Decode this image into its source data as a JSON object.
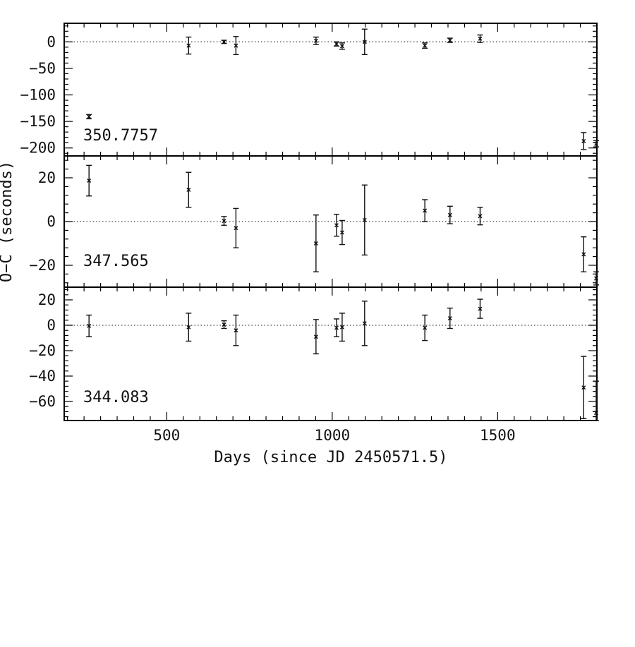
{
  "chart_data": {
    "type": "scatter",
    "xlabel": "Days (since JD 2450571.5)",
    "ylabel": "O−C (seconds)",
    "xlim": [
      190,
      1800
    ],
    "xticks": [
      {
        "value": 500,
        "label": "500"
      },
      {
        "value": 1000,
        "label": "1000"
      },
      {
        "value": 1500,
        "label": "1500"
      }
    ],
    "panels": [
      {
        "label": "350.7757",
        "ylim": [
          -215,
          35
        ],
        "yticks": [
          {
            "value": 0,
            "label": "0"
          },
          {
            "value": -50,
            "label": "−50"
          },
          {
            "value": -100,
            "label": "−100"
          },
          {
            "value": -150,
            "label": "−150"
          },
          {
            "value": -200,
            "label": "−200"
          }
        ],
        "points": [
          {
            "x": 265,
            "y": -141,
            "err": 4
          },
          {
            "x": 566,
            "y": -7,
            "err": 16
          },
          {
            "x": 673,
            "y": 0,
            "err": 3
          },
          {
            "x": 709,
            "y": -7,
            "err": 17
          },
          {
            "x": 951,
            "y": 2,
            "err": 7
          },
          {
            "x": 1013,
            "y": -4,
            "err": 4
          },
          {
            "x": 1030,
            "y": -8,
            "err": 6
          },
          {
            "x": 1098,
            "y": 0,
            "err": 24
          },
          {
            "x": 1280,
            "y": -7,
            "err": 5
          },
          {
            "x": 1356,
            "y": 3,
            "err": 4
          },
          {
            "x": 1447,
            "y": 6,
            "err": 7
          },
          {
            "x": 1760,
            "y": -187,
            "err": 16
          },
          {
            "x": 1800,
            "y": -192,
            "err": 6
          }
        ]
      },
      {
        "label": "347.565",
        "ylim": [
          -30,
          30
        ],
        "yticks": [
          {
            "value": 20,
            "label": "20"
          },
          {
            "value": 0,
            "label": "0"
          },
          {
            "value": -20,
            "label": "−20"
          }
        ],
        "points": [
          {
            "x": 265,
            "y": 18.7,
            "err": 7
          },
          {
            "x": 566,
            "y": 14.5,
            "err": 8
          },
          {
            "x": 673,
            "y": 0.3,
            "err": 2
          },
          {
            "x": 709,
            "y": -3,
            "err": 9
          },
          {
            "x": 951,
            "y": -10,
            "err": 13
          },
          {
            "x": 1013,
            "y": -1.7,
            "err": 5
          },
          {
            "x": 1030,
            "y": -5,
            "err": 5.5
          },
          {
            "x": 1098,
            "y": 0.7,
            "err": 16
          },
          {
            "x": 1280,
            "y": 5,
            "err": 5
          },
          {
            "x": 1356,
            "y": 3,
            "err": 4
          },
          {
            "x": 1447,
            "y": 2.5,
            "err": 4
          },
          {
            "x": 1760,
            "y": -15,
            "err": 8
          },
          {
            "x": 1800,
            "y": -26,
            "err": 3
          }
        ]
      },
      {
        "label": "344.083",
        "ylim": [
          -75,
          30
        ],
        "yticks": [
          {
            "value": 20,
            "label": "20"
          },
          {
            "value": 0,
            "label": "0"
          },
          {
            "value": -20,
            "label": "−20"
          },
          {
            "value": -40,
            "label": "−40"
          },
          {
            "value": -60,
            "label": "−60"
          }
        ],
        "points": [
          {
            "x": 265,
            "y": -0.5,
            "err": 8.5
          },
          {
            "x": 566,
            "y": -1.5,
            "err": 11
          },
          {
            "x": 673,
            "y": 0.5,
            "err": 3
          },
          {
            "x": 709,
            "y": -4,
            "err": 12
          },
          {
            "x": 951,
            "y": -9,
            "err": 13.5
          },
          {
            "x": 1013,
            "y": -2,
            "err": 7
          },
          {
            "x": 1030,
            "y": -1.5,
            "err": 11
          },
          {
            "x": 1098,
            "y": 1.5,
            "err": 17.5
          },
          {
            "x": 1280,
            "y": -2,
            "err": 10
          },
          {
            "x": 1356,
            "y": 5.5,
            "err": 8
          },
          {
            "x": 1447,
            "y": 13,
            "err": 7.5
          },
          {
            "x": 1760,
            "y": -49,
            "err": 24.5
          },
          {
            "x": 1800,
            "y": -69,
            "err": 25
          }
        ]
      }
    ]
  }
}
